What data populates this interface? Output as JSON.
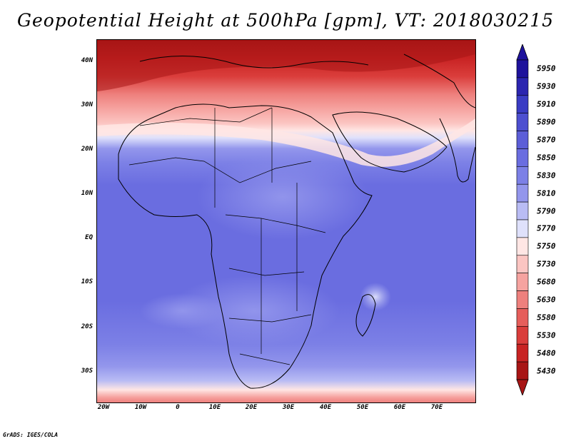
{
  "title": "Geopotential Height at 500hPa [gpm], VT: 2018030215",
  "footer": "GrADS: IGES/COLA",
  "lat_labels": [
    "40N",
    "30N",
    "20N",
    "10N",
    "EQ",
    "10S",
    "20S",
    "30S"
  ],
  "lon_labels": [
    "20W",
    "10W",
    "0",
    "10E",
    "20E",
    "30E",
    "40E",
    "50E",
    "60E",
    "70E"
  ],
  "colorbar": {
    "levels": [
      "5950",
      "5930",
      "5910",
      "5890",
      "5870",
      "5850",
      "5830",
      "5810",
      "5790",
      "5770",
      "5750",
      "5730",
      "5680",
      "5630",
      "5580",
      "5530",
      "5480",
      "5430"
    ],
    "colors": [
      "#1e129c",
      "#2b25b0",
      "#3a3cc4",
      "#4d4fd0",
      "#5c5ed8",
      "#6a6de0",
      "#7c80e6",
      "#9396ec",
      "#b9bcf4",
      "#dfe1fb",
      "#ffe6e4",
      "#fbc5c2",
      "#f6a3a0",
      "#ee807d",
      "#e65e5b",
      "#da3d3b",
      "#c82323",
      "#a81515"
    ]
  },
  "field": {
    "colors": {
      "very_high": "#2b25b0",
      "high": "#6a6de0",
      "mid_high": "#7c80e6",
      "mid": "#9396ec",
      "light": "#b9bcf4",
      "pale": "#dfe1fb",
      "neutral": "#ffe6e4",
      "warm1": "#fbc5c2",
      "warm2": "#f6a3a0",
      "warm3": "#ee807d",
      "warm4": "#da3d3b",
      "warm5": "#a81515"
    }
  }
}
